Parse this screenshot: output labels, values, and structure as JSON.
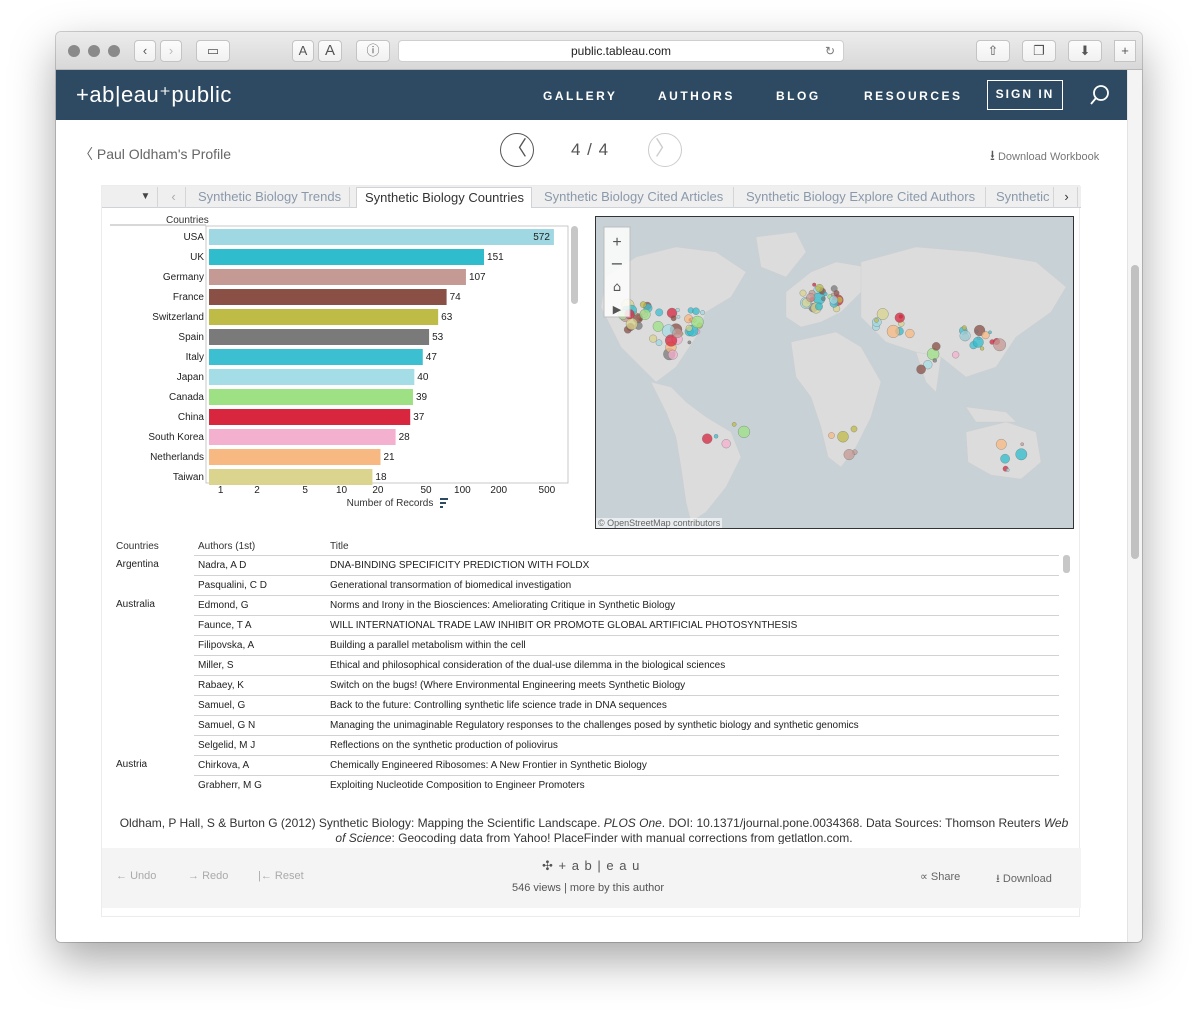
{
  "browser": {
    "url": "public.tableau.com",
    "font_small": "A",
    "font_large": "A"
  },
  "nav": {
    "logo": "+ab|eau⁺public",
    "links": [
      "GALLERY",
      "AUTHORS",
      "BLOG",
      "RESOURCES"
    ],
    "sign_in": "SIGN IN"
  },
  "header": {
    "profile_link": "Paul Oldham's Profile",
    "page_indicator": "4 / 4",
    "download_workbook": "Download Workbook"
  },
  "tabs": [
    "Synthetic Biology Trends",
    "Synthetic Biology Countries",
    "Synthetic Biology Cited Articles",
    "Synthetic Biology Explore Cited Authors",
    "Synthetic"
  ],
  "chart_data": {
    "type": "bar",
    "orientation": "horizontal",
    "xscale": "log",
    "categories": [
      "USA",
      "UK",
      "Germany",
      "France",
      "Switzerland",
      "Spain",
      "Italy",
      "Japan",
      "Canada",
      "China",
      "South Korea",
      "Netherlands",
      "Taiwan"
    ],
    "values": [
      572,
      151,
      107,
      74,
      63,
      53,
      47,
      40,
      39,
      37,
      28,
      21,
      18
    ],
    "colors": [
      "#9fd8e2",
      "#2fbccc",
      "#c59a94",
      "#8a4f45",
      "#bfbb47",
      "#7a7a7a",
      "#3cbfd1",
      "#a5dde6",
      "#9ee184",
      "#d7263d",
      "#f4b0cf",
      "#f8b882",
      "#dad48e"
    ],
    "xlabel": "Number of Records",
    "ylabel": "Countries",
    "xticks": [
      "1",
      "2",
      "5",
      "10",
      "20",
      "50",
      "100",
      "200",
      "500"
    ],
    "xlim": [
      0.8,
      720
    ]
  },
  "map": {
    "attribution": "© OpenStreetMap contributors",
    "controls": [
      "+",
      "−",
      "⌂",
      "▶"
    ]
  },
  "table": {
    "headers": [
      "Countries",
      "Authors (1st)",
      "Title"
    ],
    "groups": [
      {
        "country": "Argentina",
        "rows": [
          {
            "author": "Nadra, A D",
            "title": "DNA-BINDING SPECIFICITY PREDICTION WITH FOLDX"
          },
          {
            "author": "Pasqualini, C D",
            "title": "Generational transormation of biomedical investigation"
          }
        ]
      },
      {
        "country": "Australia",
        "rows": [
          {
            "author": "Edmond, G",
            "title": "Norms and Irony in the Biosciences: Ameliorating Critique in Synthetic Biology"
          },
          {
            "author": "Faunce, T A",
            "title": "WILL INTERNATIONAL TRADE LAW INHIBIT OR PROMOTE GLOBAL ARTIFICIAL PHOTOSYNTHESIS"
          },
          {
            "author": "Filipovska, A",
            "title": "Building a parallel metabolism within the cell"
          },
          {
            "author": "Miller, S",
            "title": "Ethical and philosophical consideration of the dual-use dilemma in the biological sciences"
          },
          {
            "author": "Rabaey, K",
            "title": "Switch on the bugs! (Where Environmental Engineering meets Synthetic Biology"
          },
          {
            "author": "Samuel, G",
            "title": "Back to the future: Controlling synthetic life science trade in DNA sequences"
          },
          {
            "author": "Samuel, G N",
            "title": "Managing the unimaginable Regulatory responses to the challenges posed by synthetic biology and synthetic genomics"
          },
          {
            "author": "Selgelid, M J",
            "title": "Reflections on the synthetic production of poliovirus"
          }
        ]
      },
      {
        "country": "Austria",
        "rows": [
          {
            "author": "Chirkova, A",
            "title": "Chemically Engineered Ribosomes: A New Frontier in Synthetic Biology"
          },
          {
            "author": "Grabherr, M G",
            "title": "Exploiting Nucleotide Composition to Engineer Promoters"
          }
        ]
      }
    ]
  },
  "citation": {
    "part1": "Oldham, P Hall, S & Burton G (2012) Synthetic Biology: Mapping the Scientific Landscape. ",
    "journal": "PLOS One",
    "part2": ". DOI: 10.1371/journal.pone.0034368. Data Sources: Thomson Reuters ",
    "source": "Web of Science",
    "part3": ": Geocoding data from Yahoo! PlaceFinder with manual corrections from getlatlon.com."
  },
  "toolbar": {
    "undo": "Undo",
    "redo": "Redo",
    "reset": "Reset",
    "brand": "+ a b | e a u",
    "views": "546 views | more by this author",
    "share": "Share",
    "download": "Download"
  }
}
